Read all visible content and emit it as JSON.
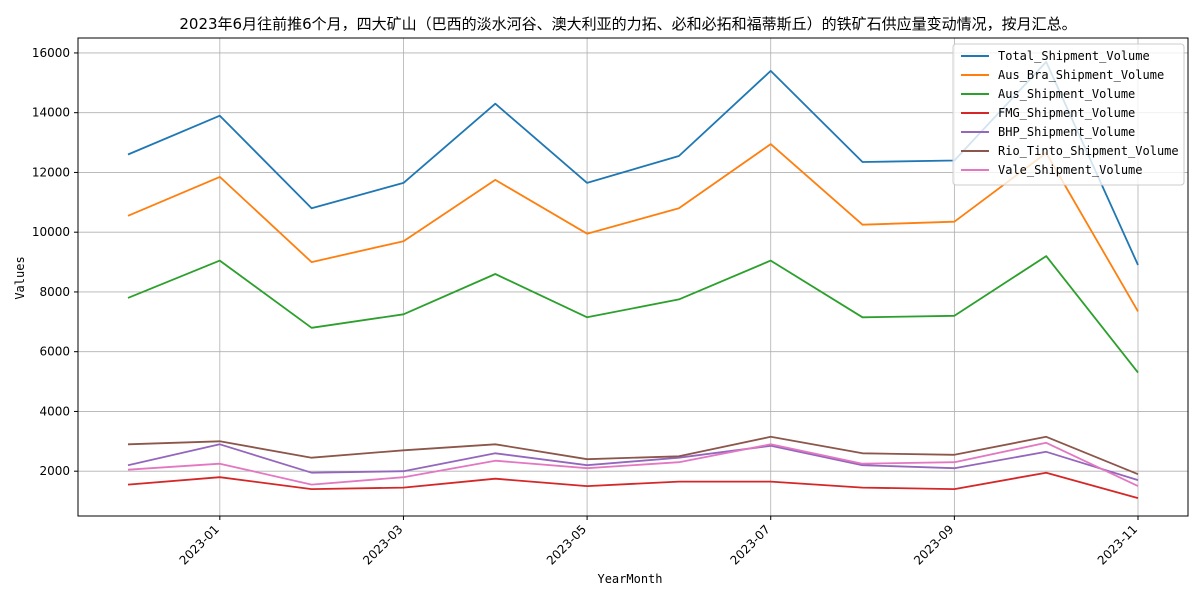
{
  "chart_data": {
    "type": "line",
    "title": "2023年6月往前推6个月，四大矿山（巴西的淡水河谷、澳大利亚的力拓、必和必拓和福蒂斯丘）的铁矿石供应量变动情况，按月汇总。",
    "xlabel": "YearMonth",
    "ylabel": "Values",
    "x": [
      "2022-12",
      "2023-01",
      "2023-02",
      "2023-03",
      "2023-04",
      "2023-05",
      "2023-06",
      "2023-07",
      "2023-08",
      "2023-09",
      "2023-10",
      "2023-11"
    ],
    "x_ticks": [
      "2023-01",
      "2023-03",
      "2023-05",
      "2023-07",
      "2023-09",
      "2023-11"
    ],
    "y_ticks": [
      2000,
      4000,
      6000,
      8000,
      10000,
      12000,
      14000,
      16000
    ],
    "ylim": [
      500,
      16500
    ],
    "grid": true,
    "legend_position": "top-right",
    "series": [
      {
        "name": "Total_Shipment_Volume",
        "color": "#1f77b4",
        "values": [
          12600,
          13900,
          10800,
          11650,
          14300,
          11650,
          12550,
          15400,
          12350,
          12400,
          15700,
          8900
        ]
      },
      {
        "name": "Aus_Bra_Shipment_Volume",
        "color": "#ff7f0e",
        "values": [
          10550,
          11850,
          9000,
          9700,
          11750,
          9950,
          10800,
          12950,
          10250,
          10350,
          12650,
          7350
        ]
      },
      {
        "name": "Aus_Shipment_Volume",
        "color": "#2ca02c",
        "values": [
          7800,
          9050,
          6800,
          7250,
          8600,
          7150,
          7750,
          9050,
          7150,
          7200,
          9200,
          5300
        ]
      },
      {
        "name": "FMG_Shipment_Volume",
        "color": "#d62728",
        "values": [
          1550,
          1800,
          1400,
          1450,
          1750,
          1500,
          1650,
          1650,
          1450,
          1400,
          1950,
          1100
        ]
      },
      {
        "name": "BHP_Shipment_Volume",
        "color": "#9467bd",
        "values": [
          2200,
          2900,
          1950,
          2000,
          2600,
          2200,
          2450,
          2850,
          2200,
          2100,
          2650,
          1700
        ]
      },
      {
        "name": "Rio_Tinto_Shipment_Volume",
        "color": "#8c564b",
        "values": [
          2900,
          3000,
          2450,
          2700,
          2900,
          2400,
          2500,
          3150,
          2600,
          2550,
          3150,
          1900
        ]
      },
      {
        "name": "Vale_Shipment_Volume",
        "color": "#e377c2",
        "values": [
          2050,
          2250,
          1550,
          1800,
          2350,
          2100,
          2300,
          2900,
          2250,
          2300,
          2950,
          1500
        ]
      }
    ]
  }
}
